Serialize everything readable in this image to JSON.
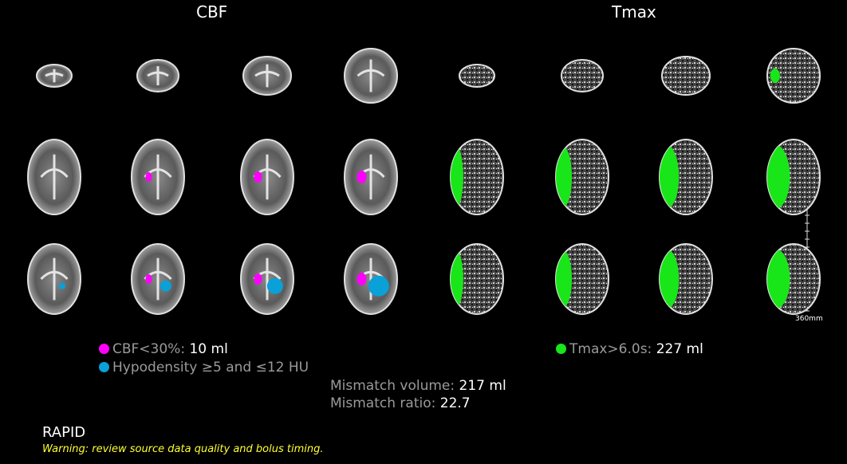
{
  "header": {
    "left_title": "CBF",
    "right_title": "Tmax"
  },
  "legend": {
    "cbf": {
      "label": "CBF<30%:",
      "value": "10 ml"
    },
    "hypodensity": {
      "label": "Hypodensity ≥5 and ≤12 HU"
    },
    "tmax": {
      "label": "Tmax>6.0s:",
      "value": "227 ml"
    }
  },
  "mismatch": {
    "volume": {
      "label": "Mismatch volume:",
      "value": "217 ml"
    },
    "ratio": {
      "label": "Mismatch ratio:",
      "value": "22.7"
    }
  },
  "scale_label": "360mm",
  "footer": {
    "brand": "RAPID",
    "warning": "Warning: review source data quality and bolus timing."
  }
}
